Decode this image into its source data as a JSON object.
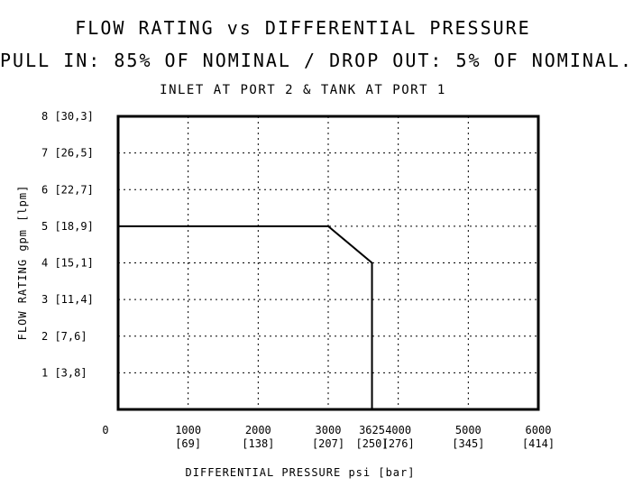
{
  "chart_data": {
    "type": "line",
    "title": "FLOW RATING vs DIFFERENTIAL PRESSURE",
    "subtitle": "PULL IN: 85% OF NOMINAL / DROP OUT: 5% OF NOMINAL.",
    "note": "INLET AT PORT 2 & TANK AT PORT 1",
    "xlabel": "DIFFERENTIAL PRESSURE psi [bar]",
    "ylabel": "FLOW RATING gpm [lpm]",
    "xlim": [
      0,
      6000
    ],
    "ylim": [
      0,
      8
    ],
    "grid": true,
    "x_ticks": [
      {
        "value": 0,
        "label": "0",
        "sub": ""
      },
      {
        "value": 1000,
        "label": "1000",
        "sub": "[69]"
      },
      {
        "value": 2000,
        "label": "2000",
        "sub": "[138]"
      },
      {
        "value": 3000,
        "label": "3000",
        "sub": "[207]"
      },
      {
        "value": 3625,
        "label": "3625",
        "sub": "[250]"
      },
      {
        "value": 4000,
        "label": "4000",
        "sub": "[276]"
      },
      {
        "value": 5000,
        "label": "5000",
        "sub": "[345]"
      },
      {
        "value": 6000,
        "label": "6000",
        "sub": "[414]"
      }
    ],
    "x_grid": [
      1000,
      2000,
      3000,
      4000,
      5000
    ],
    "y_ticks": [
      {
        "value": 1,
        "label": "1 [3,8]"
      },
      {
        "value": 2,
        "label": "2 [7,6]"
      },
      {
        "value": 3,
        "label": "3 [11,4]"
      },
      {
        "value": 4,
        "label": "4 [15,1]"
      },
      {
        "value": 5,
        "label": "5 [18,9]"
      },
      {
        "value": 6,
        "label": "6 [22,7]"
      },
      {
        "value": 7,
        "label": "7 [26,5]"
      },
      {
        "value": 8,
        "label": "8 [30,3]"
      }
    ],
    "series": [
      {
        "x": [
          0,
          3000,
          3625,
          3625
        ],
        "y": [
          5,
          5,
          4,
          0
        ]
      }
    ]
  }
}
